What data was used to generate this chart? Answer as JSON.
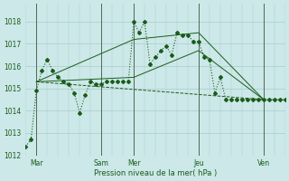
{
  "background_color": "#cce8e8",
  "grid_color": "#aacccc",
  "line_color": "#1a5c1a",
  "sep_color": "#556655",
  "xlabel": "Pression niveau de la mer( hPa )",
  "ylim": [
    1012,
    1018.8
  ],
  "yticks": [
    1012,
    1013,
    1014,
    1015,
    1016,
    1017,
    1018
  ],
  "xlim": [
    0,
    192
  ],
  "x_day_labels": [
    "Mar",
    "Sam",
    "Mer",
    "Jeu",
    "Ven"
  ],
  "x_day_positions": [
    8,
    56,
    80,
    128,
    176
  ],
  "x_sep_positions": [
    8,
    56,
    80,
    128,
    176
  ],
  "series": [
    {
      "x": [
        0,
        4,
        8,
        12,
        16,
        20,
        24,
        28,
        32,
        36,
        40,
        44,
        48,
        52,
        56,
        60,
        64,
        68,
        72,
        76,
        80,
        84,
        88,
        92,
        96,
        100,
        104,
        108,
        112,
        116,
        120,
        124,
        128,
        132,
        136,
        140,
        144,
        148,
        152,
        156,
        160,
        164,
        168,
        172,
        176,
        180,
        184,
        188,
        192
      ],
      "y": [
        1012.4,
        1012.7,
        1014.9,
        1015.8,
        1016.3,
        1015.8,
        1015.5,
        1015.3,
        1015.2,
        1014.8,
        1013.9,
        1014.7,
        1015.3,
        1015.2,
        1015.2,
        1015.3,
        1015.3,
        1015.3,
        1015.3,
        1015.3,
        1018.0,
        1017.5,
        1018.0,
        1016.1,
        1016.4,
        1016.7,
        1016.9,
        1016.5,
        1017.5,
        1017.4,
        1017.4,
        1017.1,
        1017.1,
        1016.4,
        1016.3,
        1014.8,
        1015.5,
        1014.5,
        1014.5,
        1014.5,
        1014.5,
        1014.5,
        1014.5,
        1014.5,
        1014.5,
        1014.5,
        1014.5,
        1014.5,
        1014.5
      ],
      "style": ":",
      "marker": "D",
      "markersize": 2.0,
      "linewidth": 0.8
    },
    {
      "x": [
        8,
        176
      ],
      "y": [
        1015.3,
        1014.5
      ],
      "style": "--",
      "marker": null,
      "markersize": 0,
      "linewidth": 0.7
    },
    {
      "x": [
        8,
        80,
        128,
        176
      ],
      "y": [
        1015.3,
        1015.5,
        1016.7,
        1014.5
      ],
      "style": "-",
      "marker": null,
      "markersize": 0,
      "linewidth": 0.7
    },
    {
      "x": [
        8,
        80,
        128,
        176
      ],
      "y": [
        1015.3,
        1017.2,
        1017.5,
        1014.5
      ],
      "style": "-",
      "marker": null,
      "markersize": 0,
      "linewidth": 0.7
    }
  ]
}
